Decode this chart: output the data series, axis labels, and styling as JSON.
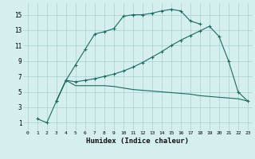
{
  "xlabel": "Humidex (Indice chaleur)",
  "ylabel": "",
  "bg_color": "#d5eeee",
  "grid_color": "#a8d0d0",
  "line_color": "#1a6b60",
  "xlim": [
    -0.5,
    23.5
  ],
  "ylim": [
    0,
    16.5
  ],
  "xticks": [
    0,
    1,
    2,
    3,
    4,
    5,
    6,
    7,
    8,
    9,
    10,
    11,
    12,
    13,
    14,
    15,
    16,
    17,
    18,
    19,
    20,
    21,
    22,
    23
  ],
  "yticks": [
    1,
    3,
    5,
    7,
    9,
    11,
    13,
    15
  ],
  "line1_x": [
    1,
    2,
    3,
    4,
    5,
    6,
    7,
    8,
    9,
    10,
    11,
    12,
    13,
    14,
    15,
    16,
    17,
    18
  ],
  "line1_y": [
    1.5,
    1.0,
    3.8,
    6.5,
    8.5,
    10.5,
    12.5,
    12.8,
    13.2,
    14.8,
    15.0,
    15.0,
    15.2,
    15.5,
    15.7,
    15.5,
    14.2,
    13.8
  ],
  "line2_x": [
    3,
    4,
    5,
    6,
    7,
    8,
    9,
    10,
    11,
    12,
    13,
    14,
    15,
    16,
    17,
    18,
    19,
    20,
    21,
    22,
    23
  ],
  "line2_y": [
    3.8,
    6.5,
    6.3,
    6.5,
    6.7,
    7.0,
    7.3,
    7.7,
    8.2,
    8.8,
    9.5,
    10.2,
    11.0,
    11.7,
    12.3,
    12.9,
    13.5,
    12.2,
    9.0,
    5.0,
    3.8
  ],
  "line3_x": [
    3,
    4,
    5,
    6,
    7,
    8,
    9,
    10,
    11,
    12,
    13,
    14,
    15,
    16,
    17,
    18,
    19,
    20,
    21,
    22,
    23
  ],
  "line3_y": [
    3.8,
    6.5,
    5.8,
    5.8,
    5.8,
    5.8,
    5.7,
    5.5,
    5.3,
    5.2,
    5.1,
    5.0,
    4.9,
    4.8,
    4.7,
    4.5,
    4.4,
    4.3,
    4.2,
    4.1,
    3.8
  ]
}
